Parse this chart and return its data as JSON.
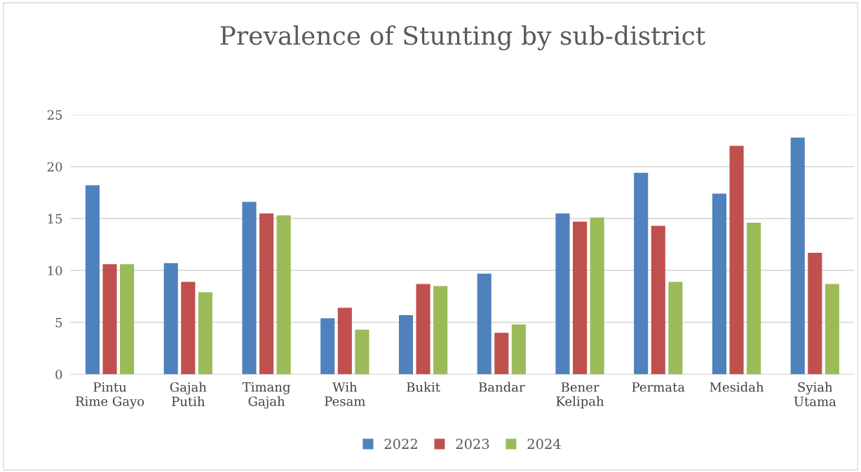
{
  "chart_data": {
    "type": "bar",
    "title": "Prevalence of Stunting by sub-district",
    "categories": [
      "Pintu\nRime Gayo",
      "Gajah\nPutih",
      "Timang\nGajah",
      "Wih\nPesam",
      "Bukit",
      "Bandar",
      "Bener\nKelipah",
      "Permata",
      "Mesidah",
      "Syiah\nUtama"
    ],
    "series": [
      {
        "name": "2022",
        "color": "#4f81bd",
        "values": [
          18.2,
          10.7,
          16.6,
          5.4,
          5.7,
          9.7,
          15.5,
          19.4,
          17.4,
          22.8
        ]
      },
      {
        "name": "2023",
        "color": "#c0504d",
        "values": [
          10.6,
          8.9,
          15.5,
          6.4,
          8.7,
          4.0,
          14.7,
          14.3,
          22.0,
          11.7
        ]
      },
      {
        "name": "2024",
        "color": "#9bbb59",
        "values": [
          10.6,
          7.9,
          15.3,
          4.3,
          8.5,
          4.8,
          15.1,
          8.9,
          14.6,
          8.7
        ]
      }
    ],
    "ylim": [
      0,
      25
    ],
    "yticks": [
      0,
      5,
      10,
      15,
      20,
      25
    ],
    "grid": "y",
    "legend": "bottom"
  }
}
